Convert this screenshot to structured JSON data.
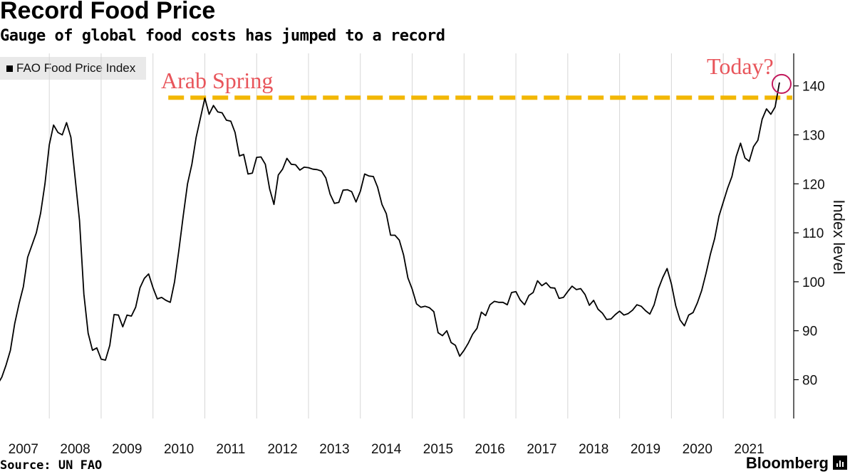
{
  "chart_data": {
    "type": "line",
    "title": "Record Food Price",
    "subtitle": "Gauge of global food costs has jumped to a record",
    "ylabel": "Index level",
    "ylim": [
      72,
      147
    ],
    "yticks": [
      80,
      90,
      100,
      110,
      120,
      130,
      140
    ],
    "xticks": [
      "2007",
      "2008",
      "2009",
      "2010",
      "2011",
      "2012",
      "2013",
      "2014",
      "2015",
      "2016",
      "2017",
      "2018",
      "2019",
      "2020",
      "2021"
    ],
    "grid": "vertical",
    "legend": "top-left",
    "series": [
      {
        "name": "FAO Food Price Index",
        "color": "#000000",
        "start": "2007-01",
        "values": [
          79.0,
          80.5,
          83.0,
          86.0,
          91.5,
          95.5,
          99.0,
          105.0,
          107.5,
          110.0,
          114.0,
          120.0,
          128.0,
          132.0,
          130.5,
          130.0,
          132.5,
          129.5,
          121.0,
          112.5,
          97.5,
          89.5,
          86.0,
          86.5,
          84.2,
          84.0,
          87.0,
          93.3,
          93.2,
          90.8,
          93.2,
          93.0,
          94.8,
          98.8,
          100.7,
          101.6,
          98.8,
          96.5,
          96.8,
          96.2,
          95.8,
          100.0,
          106.5,
          113.5,
          120.0,
          124.0,
          129.5,
          133.5,
          137.5,
          134.2,
          136.0,
          134.7,
          134.5,
          133.0,
          132.8,
          130.5,
          125.7,
          126.0,
          122.0,
          122.2,
          125.4,
          125.5,
          124.0,
          119.0,
          115.8,
          121.8,
          123.0,
          125.2,
          124.0,
          123.9,
          122.8,
          123.4,
          123.3,
          123.0,
          122.9,
          122.6,
          121.2,
          117.9,
          116.0,
          116.2,
          118.7,
          118.8,
          118.4,
          116.3,
          118.5,
          122.0,
          121.6,
          121.5,
          119.3,
          115.8,
          113.9,
          109.5,
          109.5,
          108.5,
          105.5,
          100.8,
          98.5,
          95.5,
          94.8,
          95.0,
          94.7,
          93.9,
          89.6,
          89.0,
          90.0,
          87.6,
          87.0,
          84.8,
          86.0,
          87.5,
          89.3,
          90.5,
          93.8,
          93.1,
          95.3,
          96.0,
          95.8,
          95.8,
          95.3,
          97.8,
          98.0,
          96.3,
          95.3,
          97.2,
          97.8,
          100.2,
          99.2,
          99.8,
          98.8,
          98.7,
          96.6,
          96.8,
          98.0,
          99.1,
          98.4,
          98.6,
          97.4,
          95.2,
          96.2,
          94.4,
          93.6,
          92.3,
          92.4,
          93.3,
          94.0,
          93.2,
          93.5,
          94.2,
          95.3,
          95.0,
          94.1,
          93.4,
          95.3,
          98.6,
          100.9,
          102.7,
          99.5,
          95.1,
          92.2,
          91.0,
          93.2,
          93.7,
          95.7,
          98.2,
          101.7,
          105.6,
          108.8,
          113.4,
          116.3,
          119.1,
          121.5,
          125.6,
          128.3,
          125.3,
          124.6,
          127.6,
          128.9,
          133.2,
          135.3,
          134.2,
          135.7,
          140.7
        ]
      }
    ],
    "reference_line": {
      "value": 137.6,
      "from": "2010-09",
      "label": "Arab Spring",
      "color": "#f2b705"
    },
    "annotation": {
      "label": "Today?",
      "color": "#e8555b",
      "target": "2022-03"
    },
    "source": "Source: UN FAO",
    "brand": "Bloomberg"
  }
}
